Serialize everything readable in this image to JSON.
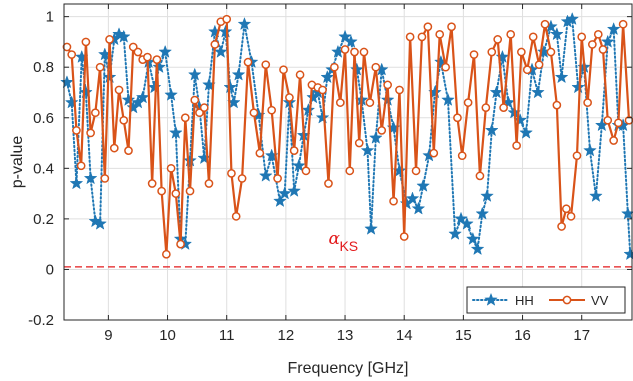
{
  "chart_data": {
    "type": "line",
    "xlabel": "Frequency [GHz]",
    "ylabel": "p-value",
    "xlim": [
      8.25,
      17.85
    ],
    "ylim": [
      -0.2,
      1.05
    ],
    "xticks": [
      9,
      10,
      11,
      12,
      13,
      14,
      15,
      16,
      17
    ],
    "yticks": [
      -0.2,
      0,
      0.2,
      0.4,
      0.6,
      0.8,
      1
    ],
    "ytick_labels": [
      "-0.2",
      "0",
      "0.2",
      "0.4",
      "0.6",
      "0.8",
      "1"
    ],
    "grid": true,
    "legend_position": "bottom-right",
    "threshold": {
      "value": 0.01,
      "color": "#e31a1c",
      "label": "α",
      "label_sub": "KS"
    },
    "series": [
      {
        "name": "HH",
        "color": "#1f77b4",
        "marker": "star",
        "line_style": "dotted",
        "points": [
          [
            8.3,
            0.74
          ],
          [
            8.38,
            0.66
          ],
          [
            8.46,
            0.34
          ],
          [
            8.55,
            0.84
          ],
          [
            8.62,
            0.7
          ],
          [
            8.7,
            0.36
          ],
          [
            8.78,
            0.19
          ],
          [
            8.86,
            0.18
          ],
          [
            8.94,
            0.85
          ],
          [
            9.02,
            0.76
          ],
          [
            9.1,
            0.91
          ],
          [
            9.18,
            0.93
          ],
          [
            9.26,
            0.92
          ],
          [
            9.34,
            0.67
          ],
          [
            9.42,
            0.64
          ],
          [
            9.5,
            0.66
          ],
          [
            9.58,
            0.68
          ],
          [
            9.68,
            0.82
          ],
          [
            9.78,
            0.72
          ],
          [
            9.86,
            0.8
          ],
          [
            9.96,
            0.86
          ],
          [
            10.06,
            0.69
          ],
          [
            10.14,
            0.54
          ],
          [
            10.22,
            0.12
          ],
          [
            10.3,
            0.1
          ],
          [
            10.38,
            0.43
          ],
          [
            10.46,
            0.77
          ],
          [
            10.54,
            0.64
          ],
          [
            10.62,
            0.44
          ],
          [
            10.7,
            0.73
          ],
          [
            10.8,
            0.94
          ],
          [
            10.9,
            0.86
          ],
          [
            10.98,
            0.94
          ],
          [
            11.06,
            0.72
          ],
          [
            11.12,
            0.66
          ],
          [
            11.2,
            0.77
          ],
          [
            11.3,
            0.97
          ],
          [
            11.42,
            0.82
          ],
          [
            11.54,
            0.61
          ],
          [
            11.66,
            0.37
          ],
          [
            11.76,
            0.45
          ],
          [
            11.9,
            0.27
          ],
          [
            11.98,
            0.3
          ],
          [
            12.06,
            0.66
          ],
          [
            12.14,
            0.31
          ],
          [
            12.22,
            0.41
          ],
          [
            12.3,
            0.53
          ],
          [
            12.38,
            0.63
          ],
          [
            12.46,
            0.68
          ],
          [
            12.54,
            0.7
          ],
          [
            12.62,
            0.6
          ],
          [
            12.7,
            0.76
          ],
          [
            12.78,
            0.79
          ],
          [
            12.88,
            0.86
          ],
          [
            13.0,
            0.92
          ],
          [
            13.1,
            0.9
          ],
          [
            13.2,
            0.79
          ],
          [
            13.28,
            0.67
          ],
          [
            13.38,
            0.47
          ],
          [
            13.44,
            0.16
          ],
          [
            13.52,
            0.52
          ],
          [
            13.62,
            0.79
          ],
          [
            13.72,
            0.67
          ],
          [
            13.82,
            0.56
          ],
          [
            13.92,
            0.39
          ],
          [
            14.04,
            0.26
          ],
          [
            14.14,
            0.28
          ],
          [
            14.24,
            0.24
          ],
          [
            14.32,
            0.33
          ],
          [
            14.42,
            0.45
          ],
          [
            14.52,
            0.7
          ],
          [
            14.62,
            0.82
          ],
          [
            14.74,
            0.67
          ],
          [
            14.86,
            0.14
          ],
          [
            14.96,
            0.2
          ],
          [
            15.06,
            0.18
          ],
          [
            15.16,
            0.12
          ],
          [
            15.24,
            0.08
          ],
          [
            15.32,
            0.22
          ],
          [
            15.4,
            0.29
          ],
          [
            15.48,
            0.55
          ],
          [
            15.56,
            0.7
          ],
          [
            15.66,
            0.84
          ],
          [
            15.76,
            0.66
          ],
          [
            15.86,
            0.62
          ],
          [
            15.96,
            0.59
          ],
          [
            16.06,
            0.54
          ],
          [
            16.16,
            0.79
          ],
          [
            16.26,
            0.7
          ],
          [
            16.36,
            0.86
          ],
          [
            16.48,
            0.96
          ],
          [
            16.58,
            0.93
          ],
          [
            16.66,
            0.76
          ],
          [
            16.76,
            0.98
          ],
          [
            16.84,
            0.99
          ],
          [
            16.94,
            0.72
          ],
          [
            17.04,
            0.8
          ],
          [
            17.14,
            0.47
          ],
          [
            17.24,
            0.29
          ],
          [
            17.34,
            0.57
          ],
          [
            17.44,
            0.9
          ],
          [
            17.54,
            0.95
          ],
          [
            17.62,
            0.57
          ],
          [
            17.7,
            0.57
          ],
          [
            17.78,
            0.22
          ],
          [
            17.82,
            0.06
          ]
        ]
      },
      {
        "name": "VV",
        "color": "#d95319",
        "marker": "circle",
        "line_style": "solid",
        "points": [
          [
            8.3,
            0.88
          ],
          [
            8.38,
            0.85
          ],
          [
            8.46,
            0.55
          ],
          [
            8.54,
            0.41
          ],
          [
            8.62,
            0.9
          ],
          [
            8.7,
            0.54
          ],
          [
            8.78,
            0.62
          ],
          [
            8.86,
            0.8
          ],
          [
            8.94,
            0.36
          ],
          [
            9.02,
            0.91
          ],
          [
            9.1,
            0.48
          ],
          [
            9.18,
            0.71
          ],
          [
            9.26,
            0.59
          ],
          [
            9.34,
            0.47
          ],
          [
            9.42,
            0.88
          ],
          [
            9.5,
            0.86
          ],
          [
            9.58,
            0.83
          ],
          [
            9.66,
            0.84
          ],
          [
            9.74,
            0.34
          ],
          [
            9.82,
            0.83
          ],
          [
            9.9,
            0.31
          ],
          [
            9.98,
            0.06
          ],
          [
            10.06,
            0.4
          ],
          [
            10.14,
            0.3
          ],
          [
            10.22,
            0.1
          ],
          [
            10.3,
            0.6
          ],
          [
            10.38,
            0.31
          ],
          [
            10.46,
            0.67
          ],
          [
            10.54,
            0.62
          ],
          [
            10.62,
            0.64
          ],
          [
            10.7,
            0.34
          ],
          [
            10.8,
            0.89
          ],
          [
            10.9,
            0.98
          ],
          [
            11.0,
            0.99
          ],
          [
            11.08,
            0.38
          ],
          [
            11.16,
            0.21
          ],
          [
            11.26,
            0.36
          ],
          [
            11.36,
            0.82
          ],
          [
            11.46,
            0.62
          ],
          [
            11.56,
            0.46
          ],
          [
            11.66,
            0.81
          ],
          [
            11.76,
            0.63
          ],
          [
            11.86,
            0.36
          ],
          [
            11.96,
            0.79
          ],
          [
            12.06,
            0.68
          ],
          [
            12.14,
            0.47
          ],
          [
            12.24,
            0.77
          ],
          [
            12.34,
            0.39
          ],
          [
            12.44,
            0.73
          ],
          [
            12.54,
            0.72
          ],
          [
            12.62,
            0.71
          ],
          [
            12.72,
            0.34
          ],
          [
            12.82,
            0.8
          ],
          [
            12.92,
            0.66
          ],
          [
            13.0,
            0.87
          ],
          [
            13.08,
            0.39
          ],
          [
            13.16,
            0.86
          ],
          [
            13.24,
            0.5
          ],
          [
            13.32,
            0.86
          ],
          [
            13.42,
            0.66
          ],
          [
            13.52,
            0.8
          ],
          [
            13.62,
            0.55
          ],
          [
            13.72,
            0.73
          ],
          [
            13.82,
            0.27
          ],
          [
            13.92,
            0.71
          ],
          [
            14.0,
            0.13
          ],
          [
            14.1,
            0.92
          ],
          [
            14.2,
            0.39
          ],
          [
            14.3,
            0.92
          ],
          [
            14.4,
            0.96
          ],
          [
            14.5,
            0.46
          ],
          [
            14.6,
            0.93
          ],
          [
            14.7,
            0.8
          ],
          [
            14.8,
            0.96
          ],
          [
            14.9,
            0.6
          ],
          [
            14.98,
            0.45
          ],
          [
            15.08,
            0.66
          ],
          [
            15.18,
            0.85
          ],
          [
            15.28,
            0.37
          ],
          [
            15.38,
            0.64
          ],
          [
            15.48,
            0.86
          ],
          [
            15.58,
            0.91
          ],
          [
            15.68,
            0.64
          ],
          [
            15.8,
            0.93
          ],
          [
            15.9,
            0.49
          ],
          [
            15.98,
            0.86
          ],
          [
            16.08,
            0.79
          ],
          [
            16.18,
            0.92
          ],
          [
            16.28,
            0.81
          ],
          [
            16.38,
            0.97
          ],
          [
            16.48,
            0.86
          ],
          [
            16.58,
            0.65
          ],
          [
            16.66,
            0.17
          ],
          [
            16.74,
            0.24
          ],
          [
            16.82,
            0.21
          ],
          [
            16.92,
            0.45
          ],
          [
            17.0,
            0.92
          ],
          [
            17.1,
            0.66
          ],
          [
            17.18,
            0.89
          ],
          [
            17.28,
            0.93
          ],
          [
            17.36,
            0.87
          ],
          [
            17.44,
            0.59
          ],
          [
            17.54,
            0.51
          ],
          [
            17.62,
            0.58
          ],
          [
            17.7,
            0.97
          ],
          [
            17.8,
            0.59
          ]
        ]
      }
    ]
  }
}
